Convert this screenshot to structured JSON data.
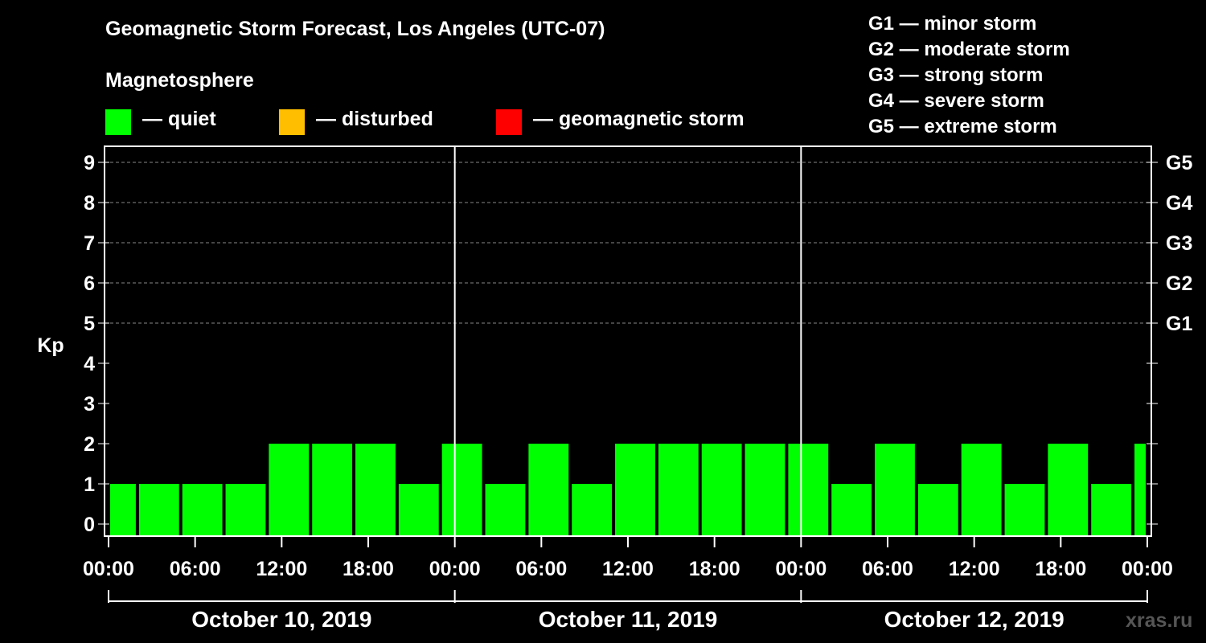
{
  "title": "Geomagnetic Storm Forecast, Los Angeles (UTC-07)",
  "legend": {
    "heading": "Magnetosphere",
    "items": [
      {
        "label": "— quiet",
        "color": "#00ff00"
      },
      {
        "label": "— disturbed",
        "color": "#ffbf00"
      },
      {
        "label": "— geomagnetic storm",
        "color": "#ff0000"
      }
    ]
  },
  "storm_scale": [
    "G1 — minor storm",
    "G2 — moderate storm",
    "G3 — strong storm",
    "G4 — severe storm",
    "G5 — extreme storm"
  ],
  "watermark": "xras.ru",
  "chart_data": {
    "type": "bar",
    "title": "Geomagnetic Storm Forecast, Los Angeles (UTC-07)",
    "ylabel": "Kp",
    "ylim": [
      0,
      9
    ],
    "yticks": [
      "0",
      "1",
      "2",
      "3",
      "4",
      "5",
      "6",
      "7",
      "8",
      "9"
    ],
    "right_axis": [
      {
        "kp": 5,
        "label": "G1"
      },
      {
        "kp": 6,
        "label": "G2"
      },
      {
        "kp": 7,
        "label": "G3"
      },
      {
        "kp": 8,
        "label": "G4"
      },
      {
        "kp": 9,
        "label": "G5"
      }
    ],
    "x_range_hours": [
      0,
      72
    ],
    "xticks": [
      "00:00",
      "06:00",
      "12:00",
      "18:00",
      "00:00",
      "06:00",
      "12:00",
      "18:00",
      "00:00",
      "06:00",
      "12:00",
      "18:00",
      "00:00"
    ],
    "days": [
      "October 10, 2019",
      "October 11, 2019",
      "October 12, 2019"
    ],
    "bars": [
      {
        "start_hour": 0,
        "end_hour": 2,
        "kp": 1
      },
      {
        "start_hour": 2,
        "end_hour": 5,
        "kp": 1
      },
      {
        "start_hour": 5,
        "end_hour": 8,
        "kp": 1
      },
      {
        "start_hour": 8,
        "end_hour": 11,
        "kp": 1
      },
      {
        "start_hour": 11,
        "end_hour": 14,
        "kp": 2
      },
      {
        "start_hour": 14,
        "end_hour": 17,
        "kp": 2
      },
      {
        "start_hour": 17,
        "end_hour": 20,
        "kp": 2
      },
      {
        "start_hour": 20,
        "end_hour": 23,
        "kp": 1
      },
      {
        "start_hour": 23,
        "end_hour": 26,
        "kp": 2
      },
      {
        "start_hour": 26,
        "end_hour": 29,
        "kp": 1
      },
      {
        "start_hour": 29,
        "end_hour": 32,
        "kp": 2
      },
      {
        "start_hour": 32,
        "end_hour": 35,
        "kp": 1
      },
      {
        "start_hour": 35,
        "end_hour": 38,
        "kp": 2
      },
      {
        "start_hour": 38,
        "end_hour": 41,
        "kp": 2
      },
      {
        "start_hour": 41,
        "end_hour": 44,
        "kp": 2
      },
      {
        "start_hour": 44,
        "end_hour": 47,
        "kp": 2
      },
      {
        "start_hour": 47,
        "end_hour": 50,
        "kp": 2
      },
      {
        "start_hour": 50,
        "end_hour": 53,
        "kp": 1
      },
      {
        "start_hour": 53,
        "end_hour": 56,
        "kp": 2
      },
      {
        "start_hour": 56,
        "end_hour": 59,
        "kp": 1
      },
      {
        "start_hour": 59,
        "end_hour": 62,
        "kp": 2
      },
      {
        "start_hour": 62,
        "end_hour": 65,
        "kp": 1
      },
      {
        "start_hour": 65,
        "end_hour": 68,
        "kp": 2
      },
      {
        "start_hour": 68,
        "end_hour": 71,
        "kp": 1
      },
      {
        "start_hour": 71,
        "end_hour": 72,
        "kp": 2
      }
    ],
    "bar_color": "#00ff00",
    "grid": "dashed horizontal at Kp 5-9"
  }
}
